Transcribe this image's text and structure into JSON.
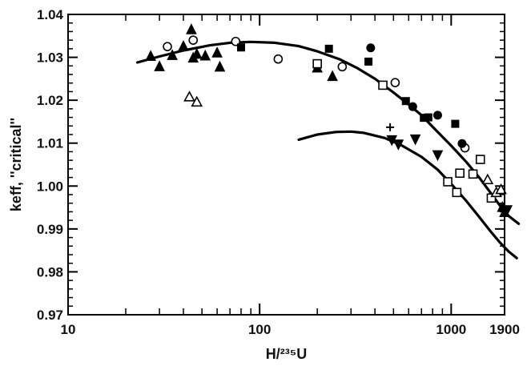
{
  "chart_data": {
    "type": "scatter",
    "title": "",
    "xlabel": "H/²³⁵U",
    "ylabel": "keff, ''critical''",
    "xscale": "log",
    "xlim": [
      10,
      1900
    ],
    "ylim": [
      0.97,
      1.04
    ],
    "grid": false,
    "x_ticks": [
      {
        "value": 10,
        "label": "10"
      },
      {
        "value": 100,
        "label": "100"
      },
      {
        "value": 1000,
        "label": "1000"
      },
      {
        "value": 1900,
        "label": "1900"
      }
    ],
    "y_ticks": [
      {
        "value": 0.97,
        "label": "0.97"
      },
      {
        "value": 0.98,
        "label": "0.98"
      },
      {
        "value": 0.99,
        "label": "0.99"
      },
      {
        "value": 1.0,
        "label": "1.00"
      },
      {
        "value": 1.01,
        "label": "1.01"
      },
      {
        "value": 1.02,
        "label": "1.02"
      },
      {
        "value": 1.03,
        "label": "1.03"
      },
      {
        "value": 1.04,
        "label": "1.04"
      }
    ],
    "curves": [
      {
        "points": [
          [
            23,
            1.0288
          ],
          [
            30,
            1.0302
          ],
          [
            40,
            1.0316
          ],
          [
            55,
            1.0328
          ],
          [
            70,
            1.0334
          ],
          [
            90,
            1.0336
          ],
          [
            120,
            1.0334
          ],
          [
            160,
            1.0326
          ],
          [
            200,
            1.0314
          ],
          [
            260,
            1.0296
          ],
          [
            320,
            1.0276
          ],
          [
            400,
            1.025
          ],
          [
            500,
            1.0218
          ],
          [
            600,
            1.019
          ],
          [
            700,
            1.0165
          ],
          [
            800,
            1.0138
          ],
          [
            1000,
            1.0094
          ],
          [
            1200,
            1.0056
          ],
          [
            1400,
            1.002
          ],
          [
            1600,
            0.9985
          ],
          [
            1800,
            0.9954
          ],
          [
            2000,
            0.993
          ],
          [
            2250,
            0.9912
          ]
        ]
      },
      {
        "points": [
          [
            160,
            1.0108
          ],
          [
            200,
            1.012
          ],
          [
            250,
            1.0126
          ],
          [
            300,
            1.0127
          ],
          [
            350,
            1.0124
          ],
          [
            450,
            1.0112
          ],
          [
            550,
            1.0095
          ],
          [
            700,
            1.0068
          ],
          [
            850,
            1.0038
          ],
          [
            1000,
            1.0005
          ],
          [
            1200,
            0.9965
          ],
          [
            1400,
            0.9928
          ],
          [
            1600,
            0.9895
          ],
          [
            1800,
            0.9868
          ],
          [
            2000,
            0.9847
          ],
          [
            2200,
            0.9832
          ]
        ]
      }
    ],
    "series": [
      {
        "marker": "triangle-filled",
        "points": [
          [
            27,
            1.0302
          ],
          [
            30,
            1.0278
          ],
          [
            35,
            1.0304
          ],
          [
            40,
            1.0325
          ],
          [
            44,
            1.0364
          ],
          [
            45,
            1.0298
          ],
          [
            47,
            1.0307
          ],
          [
            52,
            1.0303
          ],
          [
            60,
            1.031
          ],
          [
            62,
            1.0277
          ],
          [
            200,
            1.0275
          ],
          [
            240,
            1.0255
          ],
          [
            1850,
            0.995
          ],
          [
            1900,
            0.9938
          ]
        ]
      },
      {
        "marker": "circle-open",
        "points": [
          [
            33,
            1.0325
          ],
          [
            45,
            1.034
          ],
          [
            75,
            1.0337
          ],
          [
            125,
            1.0296
          ],
          [
            270,
            1.0278
          ],
          [
            510,
            1.0241
          ],
          [
            1180,
            1.0089
          ]
        ]
      },
      {
        "marker": "square-filled",
        "points": [
          [
            80,
            1.0323
          ],
          [
            230,
            1.032
          ],
          [
            370,
            1.029
          ],
          [
            580,
            1.0198
          ],
          [
            720,
            1.0159
          ],
          [
            760,
            1.016
          ],
          [
            1050,
            1.0145
          ]
        ]
      },
      {
        "marker": "circle-filled",
        "points": [
          [
            380,
            1.0322
          ],
          [
            630,
            1.0185
          ],
          [
            850,
            1.0165
          ],
          [
            1140,
            1.0099
          ]
        ]
      },
      {
        "marker": "square-open",
        "points": [
          [
            200,
            1.0285
          ],
          [
            440,
            1.0235
          ],
          [
            960,
            1.001
          ],
          [
            1070,
            0.9985
          ],
          [
            1110,
            1.003
          ],
          [
            1300,
            1.0028
          ],
          [
            1420,
            1.0062
          ],
          [
            1620,
            0.9972
          ]
        ]
      },
      {
        "marker": "triangle-open",
        "points": [
          [
            43,
            1.0208
          ],
          [
            47,
            1.0196
          ],
          [
            1550,
            1.0015
          ],
          [
            1720,
            0.9985
          ],
          [
            1820,
            0.9992
          ]
        ]
      },
      {
        "marker": "triangle-down-filled",
        "points": [
          [
            490,
            1.0108
          ],
          [
            530,
            1.0098
          ],
          [
            650,
            1.011
          ],
          [
            850,
            1.0073
          ],
          [
            1960,
            0.9945
          ]
        ]
      },
      {
        "marker": "plus",
        "points": [
          [
            480,
            1.0137
          ]
        ]
      }
    ]
  }
}
